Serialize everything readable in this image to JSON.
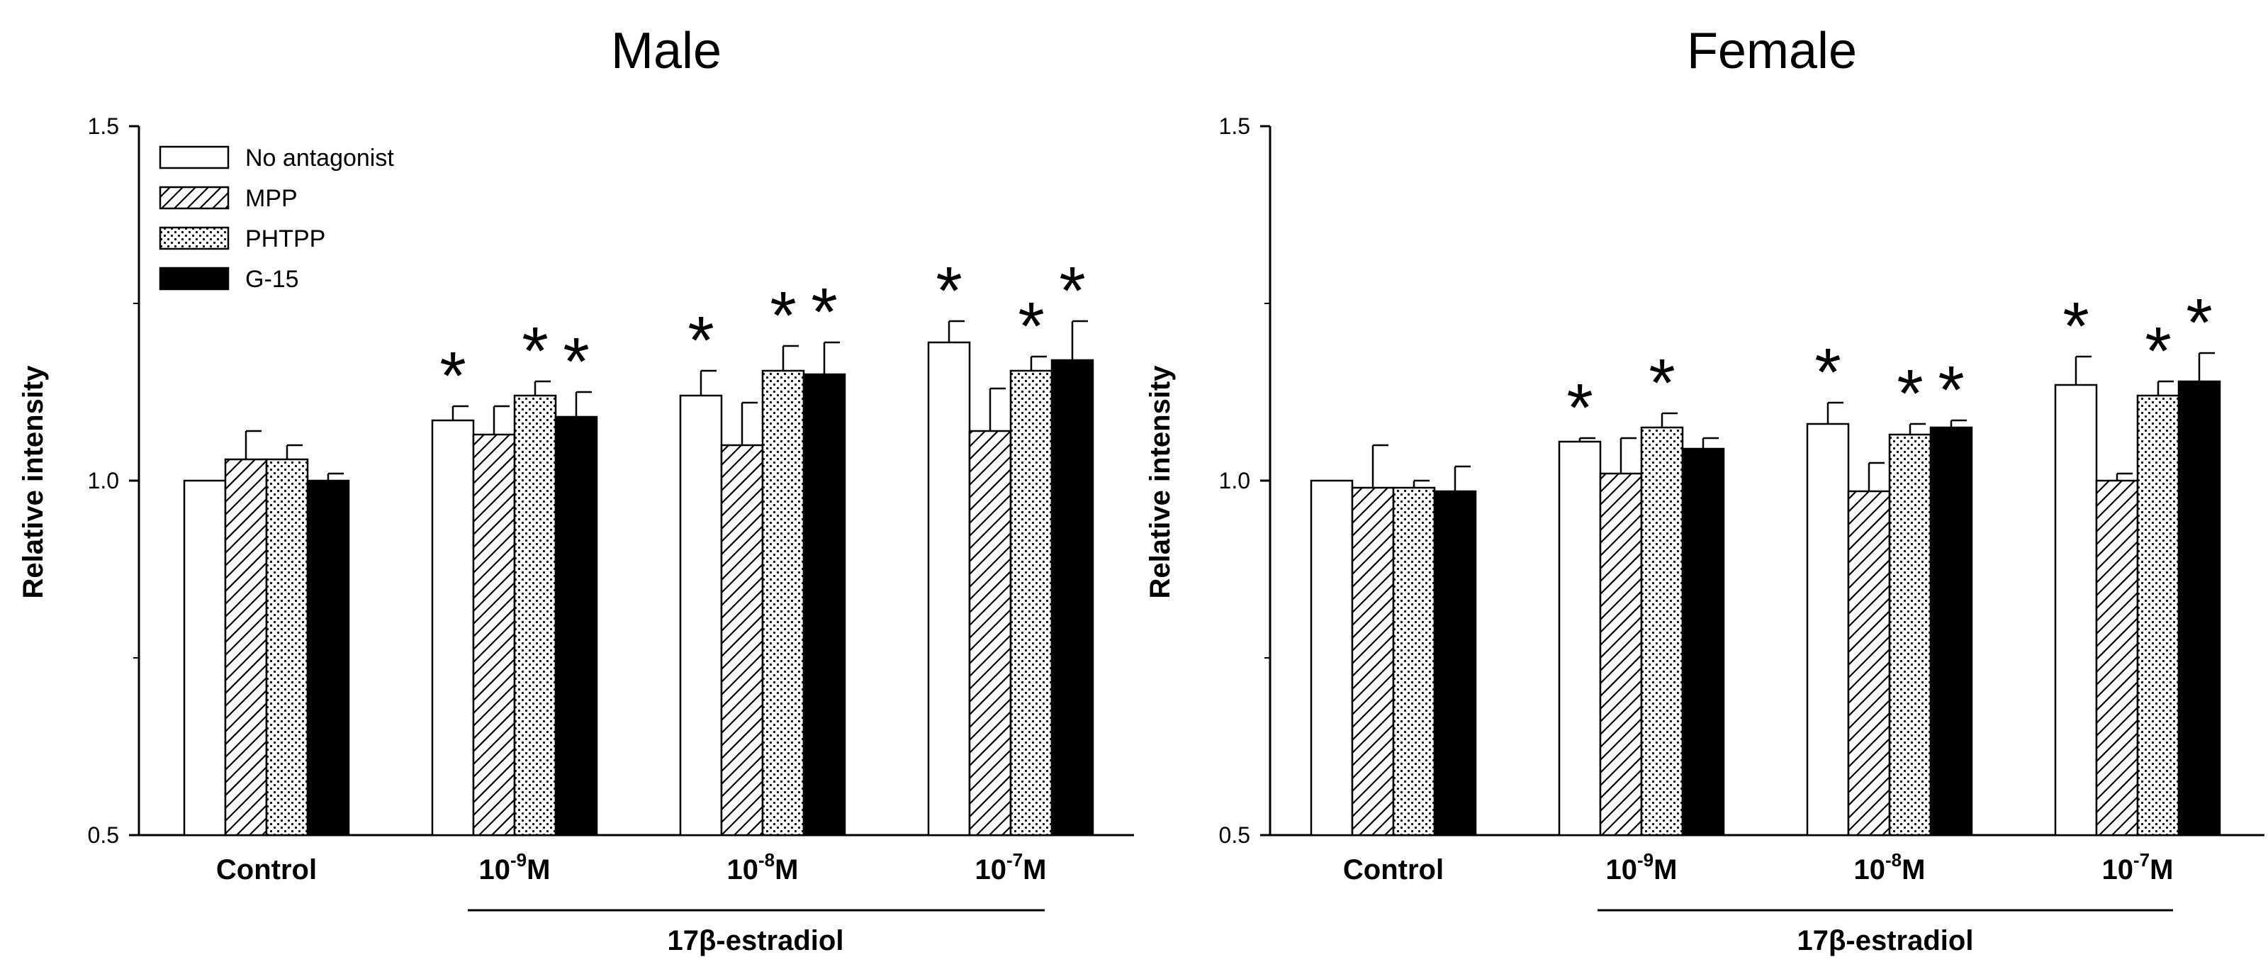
{
  "figure": {
    "legend": [
      "No antagonist",
      "MPP",
      "PHTPP",
      "G-15"
    ],
    "treatment_label": "17β-estradiol"
  },
  "chart_data": [
    {
      "type": "bar",
      "title": "Male",
      "xlabel": "",
      "ylabel": "Relative intensity",
      "ylim": [
        0.5,
        1.5
      ],
      "yticks": [
        "0.5",
        "1.0",
        "1.5"
      ],
      "categories": [
        {
          "base": "Control",
          "exp": "",
          "unit": ""
        },
        {
          "base": "10",
          "exp": "-9",
          "unit": "M"
        },
        {
          "base": "10",
          "exp": "-8",
          "unit": "M"
        },
        {
          "base": "10",
          "exp": "-7",
          "unit": "M"
        }
      ],
      "series": [
        {
          "name": "No antagonist",
          "pattern": "white",
          "values": [
            1.0,
            1.085,
            1.12,
            1.195
          ],
          "errors": [
            0.0,
            0.02,
            0.035,
            0.03
          ],
          "sig": [
            false,
            true,
            true,
            true
          ]
        },
        {
          "name": "MPP",
          "pattern": "hatch",
          "values": [
            1.03,
            1.065,
            1.05,
            1.07
          ],
          "errors": [
            0.04,
            0.04,
            0.06,
            0.06
          ],
          "sig": [
            false,
            false,
            false,
            false
          ]
        },
        {
          "name": "PHTPP",
          "pattern": "dots",
          "values": [
            1.03,
            1.12,
            1.155,
            1.155
          ],
          "errors": [
            0.02,
            0.02,
            0.035,
            0.02
          ],
          "sig": [
            false,
            true,
            true,
            true
          ]
        },
        {
          "name": "G-15",
          "pattern": "black",
          "values": [
            1.0,
            1.09,
            1.15,
            1.17
          ],
          "errors": [
            0.01,
            0.035,
            0.045,
            0.055
          ],
          "sig": [
            false,
            true,
            true,
            true
          ]
        }
      ]
    },
    {
      "type": "bar",
      "title": "Female",
      "xlabel": "",
      "ylabel": "Relative intensity",
      "ylim": [
        0.5,
        1.5
      ],
      "yticks": [
        "0.5",
        "1.0",
        "1.5"
      ],
      "categories": [
        {
          "base": "Control",
          "exp": "",
          "unit": ""
        },
        {
          "base": "10",
          "exp": "-9",
          "unit": "M"
        },
        {
          "base": "10",
          "exp": "-8",
          "unit": "M"
        },
        {
          "base": "10",
          "exp": "-7",
          "unit": "M"
        }
      ],
      "series": [
        {
          "name": "No antagonist",
          "pattern": "white",
          "values": [
            1.0,
            1.055,
            1.08,
            1.135
          ],
          "errors": [
            0.0,
            0.005,
            0.03,
            0.04
          ],
          "sig": [
            false,
            true,
            true,
            true
          ]
        },
        {
          "name": "MPP",
          "pattern": "hatch",
          "values": [
            0.99,
            1.01,
            0.985,
            1.0
          ],
          "errors": [
            0.06,
            0.05,
            0.04,
            0.01
          ],
          "sig": [
            false,
            false,
            false,
            false
          ]
        },
        {
          "name": "PHTPP",
          "pattern": "dots",
          "values": [
            0.99,
            1.075,
            1.065,
            1.12
          ],
          "errors": [
            0.01,
            0.02,
            0.015,
            0.02
          ],
          "sig": [
            false,
            true,
            true,
            true
          ]
        },
        {
          "name": "G-15",
          "pattern": "black",
          "values": [
            0.985,
            1.045,
            1.075,
            1.14
          ],
          "errors": [
            0.035,
            0.015,
            0.01,
            0.04
          ],
          "sig": [
            false,
            false,
            true,
            true
          ]
        }
      ]
    }
  ]
}
